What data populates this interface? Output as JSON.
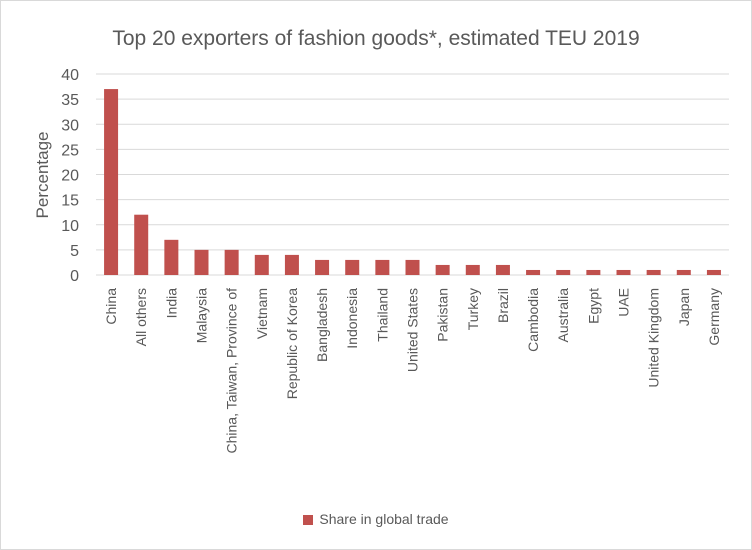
{
  "chart_data": {
    "type": "bar",
    "title": "Top 20 exporters of fashion goods*, estimated TEU 2019",
    "xlabel": "",
    "ylabel": "Percentage",
    "ylim": [
      0,
      40
    ],
    "yticks": [
      0,
      5,
      10,
      15,
      20,
      25,
      30,
      35,
      40
    ],
    "grid": true,
    "legend_position": "bottom",
    "categories": [
      "China",
      "All others",
      "India",
      "Malaysia",
      "China, Taiwan, Province of",
      "Vietnam",
      "Republic of Korea",
      "Bangladesh",
      "Indonesia",
      "Thailand",
      "United States",
      "Pakistan",
      "Turkey",
      "Brazil",
      "Cambodia",
      "Australia",
      "Egypt",
      "UAE",
      "United Kingdom",
      "Japan",
      "Germany"
    ],
    "series": [
      {
        "name": "Share in global trade",
        "color": "#c0504d",
        "values": [
          37,
          12,
          7,
          5,
          5,
          4,
          4,
          3,
          3,
          3,
          3,
          2,
          2,
          2,
          1,
          1,
          1,
          1,
          1,
          1,
          1
        ]
      }
    ]
  }
}
